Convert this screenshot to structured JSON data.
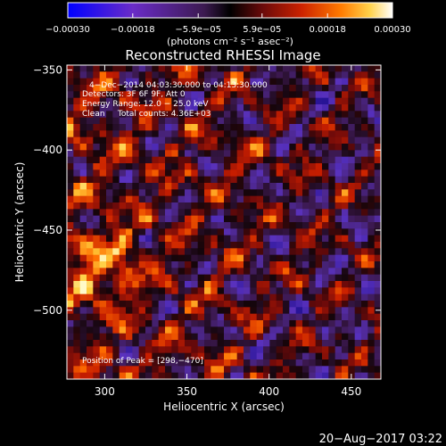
{
  "chart_data": {
    "type": "heatmap",
    "title": "Reconstructed RHESSI Image",
    "xlabel": "Heliocentric X (arcsec)",
    "ylabel": "Heliocentric Y (arcsec)",
    "xlim": [
      277,
      468
    ],
    "ylim": [
      -543,
      -347
    ],
    "x_ticks": [
      300,
      350,
      400,
      450
    ],
    "y_ticks": [
      -350,
      -400,
      -450,
      -500
    ],
    "x_tick_labels": [
      "300",
      "350",
      "400",
      "450"
    ],
    "y_tick_labels": [
      "−350",
      "−400",
      "−450",
      "−500"
    ],
    "colorbar": {
      "range": [
        -0.0003,
        0.0003
      ],
      "tick_values": [
        -0.0003,
        -0.00018,
        -5.9e-05,
        5.9e-05,
        0.00018,
        0.0003
      ],
      "tick_labels": [
        "−0.00030",
        "−0.00018",
        "−5.9e−05",
        "5.9e−05",
        "0.00018",
        "0.00030"
      ],
      "unit_label": "(photons cm⁻² s⁻¹ asec⁻²)",
      "colors": [
        "#0000ff",
        "#6a2cc8",
        "#3c1a50",
        "#000000",
        "#6a0a0a",
        "#cc2200",
        "#ff7a00",
        "#ffd24a",
        "#ffffff"
      ]
    },
    "annotations": {
      "time_range": "4−Dec−2014 04:03:30.000 to 04:13:30.000",
      "detectors": "Detectors: 3F 6F 9F, Att 0",
      "energy": "Energy Range: 12.0 − 25.0 keV",
      "method": "Clean     Total counts: 4.36E+03",
      "peak": "Position of Peak = [298,−470]"
    },
    "peak": {
      "x": 298,
      "y": -470
    },
    "grid_size": [
      48,
      48
    ],
    "grid": false,
    "legend": "colorbar-top"
  },
  "footer": {
    "timestamp": "20−Aug−2017 03:22"
  }
}
